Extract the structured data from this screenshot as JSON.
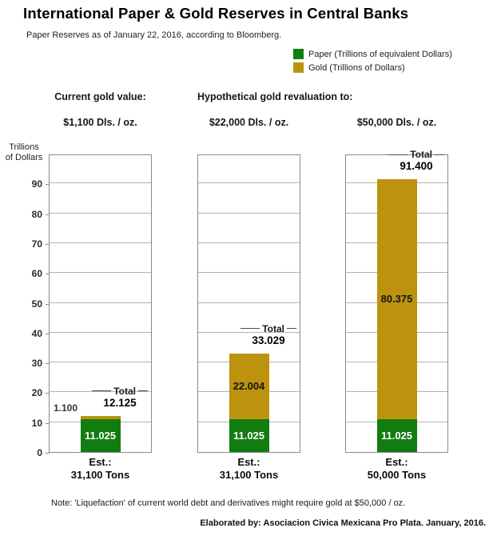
{
  "title": "International Paper & Gold Reserves in Central Banks",
  "subtitle": "Paper Reserves as of January 22, 2016, according to Bloomberg.",
  "legend": {
    "paper_label": "Paper (Trillions of equivalent Dollars)",
    "gold_label": "Gold (Trillions of Dollars)",
    "paper_color": "#117d11",
    "gold_color": "#bd920e"
  },
  "headers": {
    "current": "Current gold value:",
    "hypothetical": "Hypothetical gold revaluation to:"
  },
  "y_axis": {
    "title_line1": "Trillions",
    "title_line2": "of Dollars"
  },
  "labels": {
    "total": "Total"
  },
  "note": "Note: 'Liquefaction' of current world debt and derivatives might require gold at $50,000 / oz.",
  "credit": "Elaborated by: Asociacion Civica Mexicana Pro Plata. January, 2016.",
  "chart_data": {
    "type": "bar",
    "stacked": true,
    "title": "International Paper & Gold Reserves in Central Banks",
    "ylabel": "Trillions of Dollars",
    "ylim": [
      0,
      100
    ],
    "yticks": [
      0,
      10,
      20,
      30,
      40,
      50,
      60,
      70,
      80,
      90
    ],
    "grid": true,
    "legend_position": "top-right",
    "categories": [
      "Est.: 31,100 Tons",
      "Est.: 31,100 Tons",
      "Est.: 50,000 Tons"
    ],
    "series": [
      {
        "name": "Paper (Trillions of equivalent Dollars)",
        "values": [
          11.025,
          11.025,
          11.025
        ]
      },
      {
        "name": "Gold (Trillions of Dollars)",
        "values": [
          1.1,
          22.004,
          80.375
        ]
      }
    ],
    "totals": [
      12.125,
      33.029,
      91.4
    ],
    "panels": [
      {
        "scenario": "$1,100 Dls. / oz.",
        "paper": 11.025,
        "gold": 1.1,
        "total": 12.125,
        "paper_label": "11.025",
        "gold_label": "1.100",
        "total_label": "12.125",
        "est_line1": "Est.:",
        "est_line2": "31,100 Tons"
      },
      {
        "scenario": "$22,000 Dls. / oz.",
        "paper": 11.025,
        "gold": 22.004,
        "total": 33.029,
        "paper_label": "11.025",
        "gold_label": "22.004",
        "total_label": "33.029",
        "est_line1": "Est.:",
        "est_line2": "31,100 Tons"
      },
      {
        "scenario": "$50,000 Dls. / oz.",
        "paper": 11.025,
        "gold": 80.375,
        "total": 91.4,
        "paper_label": "11.025",
        "gold_label": "80.375",
        "total_label": "91.400",
        "est_line1": "Est.:",
        "est_line2": "50,000 Tons"
      }
    ]
  }
}
